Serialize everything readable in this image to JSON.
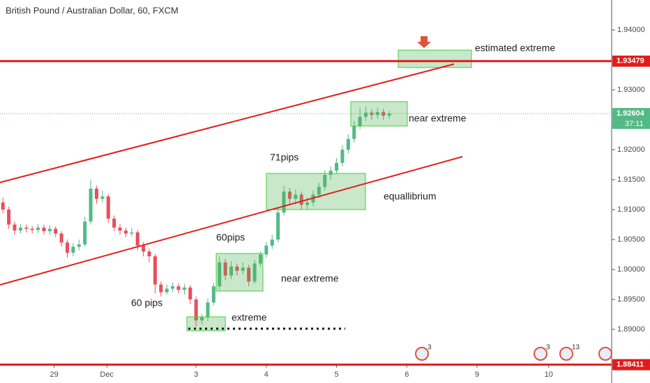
{
  "chart_data": {
    "type": "candlestick",
    "title": "British Pound / Australian Dollar, 60, FXCM",
    "up_color": "#53b987",
    "down_color": "#eb4d5c",
    "xlim": [
      0,
      209
    ],
    "xticks": [
      {
        "value": 18.5,
        "label": "29"
      },
      {
        "value": 36.5,
        "label": "Dec"
      },
      {
        "value": 67,
        "label": "3"
      },
      {
        "value": 91,
        "label": "4"
      },
      {
        "value": 115,
        "label": "5"
      },
      {
        "value": 139,
        "label": "6"
      },
      {
        "value": 163,
        "label": "9"
      },
      {
        "value": 187.5,
        "label": "10"
      }
    ],
    "ylim": [
      1.88105,
      1.945
    ],
    "yticks": [
      {
        "value": 1.94,
        "label": "1.94000"
      },
      {
        "value": 1.93,
        "label": "1.93000"
      },
      {
        "value": 1.92,
        "label": "1.92000"
      },
      {
        "value": 1.915,
        "label": "1.91500"
      },
      {
        "value": 1.91,
        "label": "1.91000"
      },
      {
        "value": 1.905,
        "label": "1.90500"
      },
      {
        "value": 1.9,
        "label": "1.90000"
      },
      {
        "value": 1.895,
        "label": "1.89500"
      },
      {
        "value": 1.89,
        "label": "1.89000"
      }
    ],
    "grid": false,
    "x": [
      1,
      3,
      5,
      7,
      9,
      11,
      13,
      15,
      17,
      19,
      21,
      23,
      25,
      27,
      29,
      31,
      33,
      35,
      37,
      39,
      41,
      43,
      45,
      47,
      49,
      51,
      53,
      55,
      57,
      59,
      61,
      63,
      65,
      67,
      69,
      71,
      73,
      75,
      77,
      79,
      81,
      83,
      85,
      87,
      89,
      91,
      93,
      95,
      97,
      99,
      101,
      103,
      105,
      107,
      109,
      111,
      113,
      115,
      117,
      119,
      121,
      123,
      125,
      127,
      129,
      131,
      133
    ],
    "open": [
      1.9112,
      1.91,
      1.9075,
      1.9065,
      1.907,
      1.9068,
      1.9066,
      1.907,
      1.9064,
      1.9068,
      1.906,
      1.9045,
      1.9028,
      1.9038,
      1.9042,
      1.908,
      1.9135,
      1.9118,
      1.9122,
      1.9085,
      1.907,
      1.9065,
      1.906,
      1.9062,
      1.904,
      1.903,
      1.9022,
      1.8975,
      1.8962,
      1.8968,
      1.8972,
      1.8966,
      1.897,
      1.895,
      1.8915,
      1.892,
      1.8945,
      1.8972,
      1.9012,
      1.899,
      1.9005,
      1.8998,
      1.9003,
      1.898,
      1.901,
      1.9025,
      1.904,
      1.905,
      1.9095,
      1.913,
      1.9118,
      1.9125,
      1.9108,
      1.9112,
      1.9125,
      1.9138,
      1.9158,
      1.9165,
      1.9178,
      1.92,
      1.9218,
      1.924,
      1.9255,
      1.9262,
      1.9258,
      1.9263,
      1.9257
    ],
    "high": [
      1.912,
      1.9105,
      1.908,
      1.9076,
      1.9075,
      1.9073,
      1.9076,
      1.9075,
      1.9074,
      1.9072,
      1.9064,
      1.905,
      1.9044,
      1.905,
      1.9088,
      1.915,
      1.914,
      1.9132,
      1.9126,
      1.909,
      1.9076,
      1.907,
      1.907,
      1.9066,
      1.9046,
      1.9035,
      1.9026,
      1.898,
      1.8975,
      1.8978,
      1.8977,
      1.8976,
      1.8974,
      1.8955,
      1.8926,
      1.8952,
      1.8978,
      1.9022,
      1.9018,
      1.9014,
      1.901,
      1.9012,
      1.9008,
      1.9016,
      1.903,
      1.9046,
      1.9058,
      1.9102,
      1.914,
      1.9136,
      1.9134,
      1.913,
      1.912,
      1.9132,
      1.9145,
      1.9166,
      1.9172,
      1.9186,
      1.9208,
      1.9226,
      1.9248,
      1.927,
      1.9272,
      1.9268,
      1.927,
      1.9268,
      1.9265
    ],
    "low": [
      1.9094,
      1.9068,
      1.9058,
      1.906,
      1.9062,
      1.906,
      1.9061,
      1.9058,
      1.9058,
      1.9054,
      1.9038,
      1.902,
      1.9022,
      1.9032,
      1.9038,
      1.9075,
      1.911,
      1.9112,
      1.9078,
      1.9064,
      1.9058,
      1.9054,
      1.9055,
      1.9032,
      1.9022,
      1.9012,
      1.896,
      1.8955,
      1.8958,
      1.8962,
      1.896,
      1.8958,
      1.8942,
      1.8905,
      1.8908,
      1.8914,
      1.894,
      1.8966,
      1.8982,
      1.8984,
      1.899,
      1.8992,
      1.8972,
      1.8976,
      1.9004,
      1.902,
      1.9034,
      1.9045,
      1.909,
      1.911,
      1.9108,
      1.91,
      1.91,
      1.9106,
      1.912,
      1.9132,
      1.915,
      1.916,
      1.9172,
      1.9194,
      1.9212,
      1.9234,
      1.9248,
      1.925,
      1.9252,
      1.925,
      1.9252
    ],
    "close": [
      1.91,
      1.9075,
      1.9065,
      1.907,
      1.9068,
      1.9066,
      1.907,
      1.9064,
      1.9068,
      1.906,
      1.9045,
      1.9028,
      1.9038,
      1.9042,
      1.908,
      1.9135,
      1.9118,
      1.9122,
      1.9085,
      1.907,
      1.9065,
      1.906,
      1.9062,
      1.904,
      1.903,
      1.9022,
      1.8975,
      1.8962,
      1.8968,
      1.8972,
      1.8966,
      1.897,
      1.895,
      1.8915,
      1.892,
      1.8945,
      1.8972,
      1.9012,
      1.899,
      1.9005,
      1.8998,
      1.9003,
      1.898,
      1.901,
      1.9025,
      1.904,
      1.905,
      1.9095,
      1.913,
      1.9118,
      1.9125,
      1.9108,
      1.9112,
      1.9125,
      1.9138,
      1.9158,
      1.9165,
      1.9178,
      1.92,
      1.9218,
      1.924,
      1.9255,
      1.9262,
      1.9258,
      1.9263,
      1.9257,
      1.92604
    ],
    "level_lines": [
      {
        "value": 1.93479,
        "label": "1.93479",
        "color": "#e31b1b"
      },
      {
        "value": 1.88411,
        "label": "1.88411",
        "color": "#e31b1b"
      }
    ],
    "last_price": {
      "value": 1.92604,
      "label": "1.92604",
      "countdown": "37:11",
      "color": "#53b987"
    },
    "annotations": [
      "estimated extreme",
      "near extreme",
      "71pips",
      "equallibrium",
      "60pips",
      "near extreme",
      "60 pips",
      "extreme"
    ],
    "events": [
      3,
      3,
      13
    ]
  }
}
